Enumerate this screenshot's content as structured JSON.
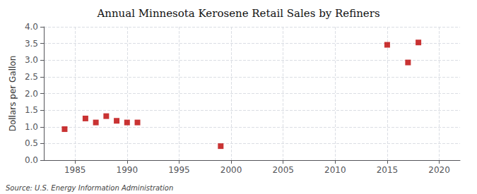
{
  "chart_data": {
    "type": "scatter",
    "title": "Annual Minnesota Kerosene Retail Sales by Refiners",
    "ylabel": "Dollars per Gallon",
    "annotation": "Source: U.S. Energy Information Administration",
    "x": [
      1984,
      1986,
      1987,
      1988,
      1989,
      1990,
      1991,
      1999,
      2015,
      2017,
      2018
    ],
    "values": [
      0.93,
      1.25,
      1.13,
      1.32,
      1.18,
      1.13,
      1.13,
      0.42,
      3.46,
      2.93,
      3.53
    ],
    "color": "#bb0000",
    "marker": "square",
    "xlim": [
      1982,
      2022
    ],
    "xticks": [
      1985,
      1990,
      1995,
      2000,
      2005,
      2010,
      2015,
      2020
    ],
    "ylim": [
      0.0,
      4.0
    ],
    "yticks": [
      {
        "value": 0,
        "label": "0.0"
      },
      0.5,
      {
        "value": 1,
        "label": "1.0"
      },
      1.5,
      {
        "value": 2,
        "label": "2.0"
      },
      2.5,
      {
        "value": 3,
        "label": "3.0"
      },
      3.5,
      {
        "value": 4,
        "label": "4.0"
      }
    ],
    "grid": true
  }
}
